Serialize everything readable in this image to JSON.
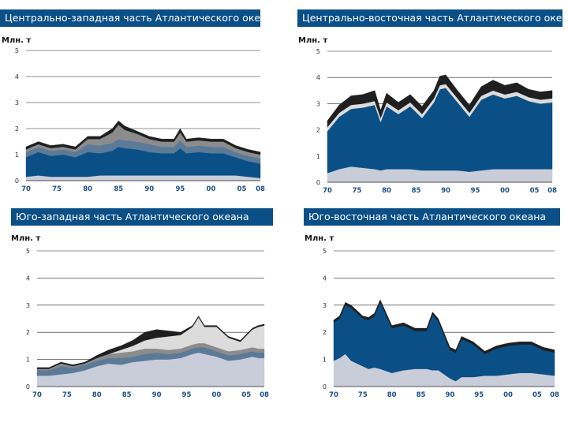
{
  "palette": {
    "title_bg": "#0a4f86",
    "layer_light": "#c9cdd9",
    "layer_blue": "#0a4f86",
    "layer_slate": "#5b7a98",
    "layer_lightgray": "#dcdcdc",
    "layer_gray": "#8c8c8c",
    "layer_black": "#1f1f1f",
    "x_tick_color": "#1a4f86"
  },
  "chart_data": [
    {
      "type": "area",
      "stacked": true,
      "title": "Центрально-западная часть Атлантического океана",
      "ylabel": "Млн. т",
      "xlim": [
        1970,
        2008
      ],
      "ylim": [
        0,
        5
      ],
      "y_ticks": [
        "0",
        "1",
        "2",
        "3",
        "4",
        "5"
      ],
      "x_tick_labels": [
        "70",
        "75",
        "80",
        "85",
        "90",
        "95",
        "00",
        "05",
        "08"
      ],
      "x_tick_values": [
        1970,
        1975,
        1980,
        1985,
        1990,
        1995,
        2000,
        2005,
        2008
      ],
      "x": [
        1970,
        1972,
        1974,
        1976,
        1978,
        1980,
        1982,
        1984,
        1985,
        1986,
        1988,
        1990,
        1992,
        1994,
        1995,
        1996,
        1998,
        2000,
        2002,
        2004,
        2006,
        2008
      ],
      "series": [
        {
          "name": "layer_light",
          "values": [
            0.15,
            0.2,
            0.15,
            0.15,
            0.15,
            0.15,
            0.2,
            0.2,
            0.2,
            0.2,
            0.2,
            0.2,
            0.2,
            0.2,
            0.2,
            0.2,
            0.2,
            0.2,
            0.2,
            0.2,
            0.15,
            0.1
          ]
        },
        {
          "name": "layer_blue",
          "values": [
            0.75,
            0.9,
            0.8,
            0.85,
            0.75,
            0.95,
            0.85,
            0.95,
            1.1,
            1.05,
            1.0,
            0.9,
            0.85,
            0.85,
            1.05,
            0.85,
            0.9,
            0.85,
            0.85,
            0.7,
            0.6,
            0.55
          ]
        },
        {
          "name": "layer_slate",
          "values": [
            0.2,
            0.2,
            0.2,
            0.2,
            0.2,
            0.3,
            0.3,
            0.3,
            0.3,
            0.3,
            0.3,
            0.3,
            0.25,
            0.25,
            0.3,
            0.25,
            0.25,
            0.25,
            0.25,
            0.2,
            0.2,
            0.2
          ]
        },
        {
          "name": "layer_gray",
          "values": [
            0.1,
            0.1,
            0.1,
            0.1,
            0.1,
            0.2,
            0.25,
            0.4,
            0.55,
            0.4,
            0.3,
            0.2,
            0.2,
            0.2,
            0.3,
            0.2,
            0.2,
            0.2,
            0.2,
            0.15,
            0.15,
            0.15
          ]
        },
        {
          "name": "layer_black",
          "values": [
            0.1,
            0.1,
            0.1,
            0.1,
            0.1,
            0.1,
            0.1,
            0.15,
            0.15,
            0.15,
            0.1,
            0.1,
            0.1,
            0.1,
            0.15,
            0.1,
            0.1,
            0.1,
            0.1,
            0.1,
            0.1,
            0.1
          ]
        }
      ]
    },
    {
      "type": "area",
      "stacked": true,
      "title": "Центрально-восточная часть Атлантического океана",
      "ylabel": "Млн. т",
      "xlim": [
        1970,
        2008
      ],
      "ylim": [
        0,
        5
      ],
      "y_ticks": [
        "0",
        "1",
        "2",
        "3",
        "4",
        "5"
      ],
      "x_tick_labels": [
        "70",
        "75",
        "80",
        "85",
        "90",
        "95",
        "00",
        "05",
        "08"
      ],
      "x_tick_values": [
        1970,
        1975,
        1980,
        1985,
        1990,
        1995,
        2000,
        2005,
        2008
      ],
      "x": [
        1970,
        1972,
        1974,
        1976,
        1978,
        1979,
        1980,
        1982,
        1984,
        1986,
        1988,
        1989,
        1990,
        1992,
        1994,
        1996,
        1998,
        2000,
        2002,
        2004,
        2006,
        2008
      ],
      "series": [
        {
          "name": "layer_light",
          "values": [
            0.35,
            0.5,
            0.6,
            0.55,
            0.5,
            0.45,
            0.5,
            0.5,
            0.5,
            0.45,
            0.45,
            0.45,
            0.45,
            0.45,
            0.4,
            0.45,
            0.5,
            0.5,
            0.5,
            0.5,
            0.5,
            0.5
          ]
        },
        {
          "name": "layer_blue",
          "values": [
            1.6,
            2.0,
            2.2,
            2.3,
            2.45,
            1.85,
            2.4,
            2.1,
            2.4,
            2.0,
            2.6,
            3.1,
            3.15,
            2.6,
            2.1,
            2.7,
            2.85,
            2.7,
            2.8,
            2.6,
            2.5,
            2.55
          ]
        },
        {
          "name": "layer_lightgray",
          "values": [
            0.15,
            0.15,
            0.15,
            0.15,
            0.15,
            0.15,
            0.15,
            0.15,
            0.15,
            0.15,
            0.15,
            0.15,
            0.15,
            0.15,
            0.15,
            0.15,
            0.15,
            0.15,
            0.15,
            0.15,
            0.15,
            0.15
          ]
        },
        {
          "name": "layer_black",
          "values": [
            0.25,
            0.3,
            0.35,
            0.35,
            0.4,
            0.3,
            0.35,
            0.3,
            0.3,
            0.3,
            0.3,
            0.35,
            0.35,
            0.3,
            0.3,
            0.35,
            0.4,
            0.35,
            0.35,
            0.3,
            0.3,
            0.3
          ]
        }
      ]
    },
    {
      "type": "area",
      "stacked": true,
      "title": "Юго-западная часть Атлантического океана",
      "ylabel": "Млн. т",
      "xlim": [
        1970,
        2008
      ],
      "ylim": [
        0,
        5
      ],
      "y_ticks": [
        "0",
        "1",
        "2",
        "3",
        "4",
        "5"
      ],
      "x_tick_labels": [
        "70",
        "75",
        "80",
        "85",
        "90",
        "95",
        "00",
        "05",
        "08"
      ],
      "x_tick_values": [
        1970,
        1975,
        1980,
        1985,
        1990,
        1995,
        2000,
        2005,
        2008
      ],
      "x": [
        1970,
        1972,
        1974,
        1976,
        1978,
        1980,
        1982,
        1984,
        1986,
        1988,
        1990,
        1992,
        1994,
        1996,
        1997,
        1998,
        2000,
        2002,
        2004,
        2006,
        2007,
        2008
      ],
      "series": [
        {
          "name": "layer_light",
          "values": [
            0.4,
            0.4,
            0.45,
            0.5,
            0.6,
            0.75,
            0.85,
            0.8,
            0.9,
            0.95,
            1.0,
            1.0,
            1.05,
            1.2,
            1.25,
            1.2,
            1.1,
            0.95,
            1.0,
            1.1,
            1.05,
            1.05
          ]
        },
        {
          "name": "layer_slate",
          "values": [
            0.2,
            0.2,
            0.3,
            0.2,
            0.2,
            0.2,
            0.2,
            0.25,
            0.2,
            0.25,
            0.25,
            0.2,
            0.2,
            0.2,
            0.2,
            0.25,
            0.2,
            0.2,
            0.2,
            0.2,
            0.2,
            0.2
          ]
        },
        {
          "name": "layer_gray",
          "values": [
            0.05,
            0.05,
            0.1,
            0.05,
            0.05,
            0.1,
            0.15,
            0.2,
            0.2,
            0.2,
            0.15,
            0.15,
            0.15,
            0.15,
            0.15,
            0.15,
            0.15,
            0.15,
            0.15,
            0.15,
            0.15,
            0.15
          ]
        },
        {
          "name": "layer_lightgray",
          "values": [
            0.0,
            0.0,
            0.0,
            0.0,
            0.0,
            0.0,
            0.0,
            0.1,
            0.2,
            0.3,
            0.4,
            0.5,
            0.5,
            0.65,
            0.95,
            0.6,
            0.75,
            0.5,
            0.3,
            0.65,
            0.8,
            0.85
          ]
        },
        {
          "name": "layer_black",
          "values": [
            0.05,
            0.05,
            0.05,
            0.05,
            0.05,
            0.1,
            0.15,
            0.15,
            0.2,
            0.3,
            0.3,
            0.2,
            0.1,
            0.05,
            0.05,
            0.05,
            0.05,
            0.05,
            0.05,
            0.05,
            0.05,
            0.05
          ]
        }
      ]
    },
    {
      "type": "area",
      "stacked": true,
      "title": "Юго-восточная часть Атлантического океана",
      "ylabel": "Млн. т",
      "xlim": [
        1970,
        2008
      ],
      "ylim": [
        0,
        5
      ],
      "y_ticks": [
        "0",
        "1",
        "2",
        "3",
        "4",
        "5"
      ],
      "x_tick_labels": [
        "70",
        "75",
        "80",
        "85",
        "90",
        "95",
        "00",
        "05",
        "08"
      ],
      "x_tick_values": [
        1970,
        1975,
        1980,
        1985,
        1990,
        1995,
        2000,
        2005,
        2008
      ],
      "x": [
        1970,
        1971,
        1972,
        1973,
        1975,
        1976,
        1977,
        1978,
        1980,
        1982,
        1984,
        1986,
        1987,
        1988,
        1990,
        1991,
        1992,
        1994,
        1996,
        1998,
        2000,
        2002,
        2004,
        2006,
        2008
      ],
      "series": [
        {
          "name": "layer_light",
          "values": [
            0.95,
            1.05,
            1.2,
            0.95,
            0.75,
            0.65,
            0.7,
            0.65,
            0.5,
            0.6,
            0.65,
            0.65,
            0.6,
            0.6,
            0.3,
            0.2,
            0.35,
            0.35,
            0.4,
            0.4,
            0.45,
            0.5,
            0.5,
            0.45,
            0.4
          ]
        },
        {
          "name": "layer_blue",
          "values": [
            1.4,
            1.45,
            1.8,
            1.95,
            1.75,
            1.8,
            1.9,
            2.45,
            1.65,
            1.65,
            1.4,
            1.4,
            2.05,
            1.8,
            1.05,
            1.05,
            1.4,
            1.2,
            0.8,
            1.0,
            1.05,
            1.05,
            1.05,
            0.9,
            0.85
          ]
        },
        {
          "name": "layer_black",
          "values": [
            0.1,
            0.1,
            0.1,
            0.1,
            0.1,
            0.1,
            0.1,
            0.1,
            0.1,
            0.1,
            0.1,
            0.1,
            0.1,
            0.1,
            0.1,
            0.1,
            0.1,
            0.1,
            0.1,
            0.1,
            0.1,
            0.1,
            0.1,
            0.1,
            0.1
          ]
        }
      ]
    }
  ]
}
